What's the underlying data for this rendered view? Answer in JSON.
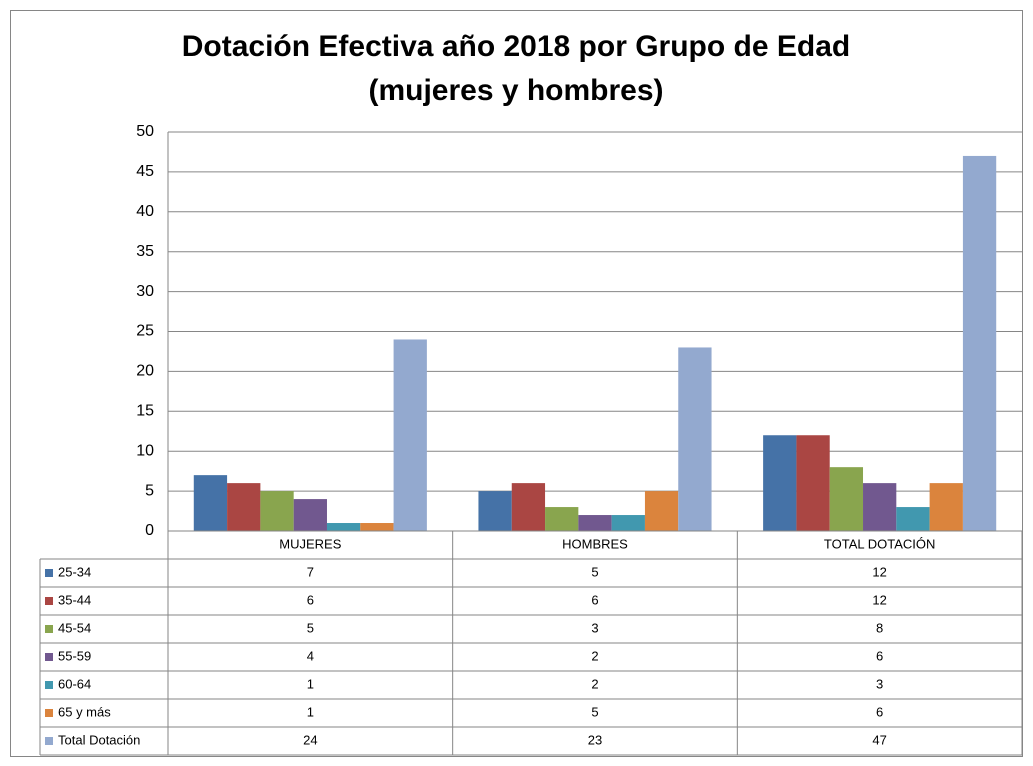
{
  "chart_data": {
    "type": "bar",
    "title": [
      "Dotación Efectiva año 2018 por Grupo de Edad",
      "(mujeres y hombres)"
    ],
    "categories": [
      "MUJERES",
      "HOMBRES",
      "TOTAL DOTACIÓN"
    ],
    "series": [
      {
        "name": "25-34",
        "color": "#4572a7",
        "values": [
          7,
          5,
          12
        ]
      },
      {
        "name": "35-44",
        "color": "#aa4643",
        "values": [
          6,
          6,
          12
        ]
      },
      {
        "name": "45-54",
        "color": "#89a54e",
        "values": [
          5,
          3,
          8
        ]
      },
      {
        "name": "55-59",
        "color": "#71588f",
        "values": [
          4,
          2,
          6
        ]
      },
      {
        "name": "60-64",
        "color": "#4198af",
        "values": [
          1,
          2,
          3
        ]
      },
      {
        "name": "65 y más",
        "color": "#db843d",
        "values": [
          1,
          5,
          6
        ]
      },
      {
        "name": "Total Dotación",
        "color": "#93a9cf",
        "values": [
          24,
          23,
          47
        ]
      }
    ],
    "ylim": [
      0,
      50
    ],
    "yticks": [
      0,
      5,
      10,
      15,
      20,
      25,
      30,
      35,
      40,
      45,
      50
    ],
    "grid": true,
    "legend": "data-table"
  }
}
